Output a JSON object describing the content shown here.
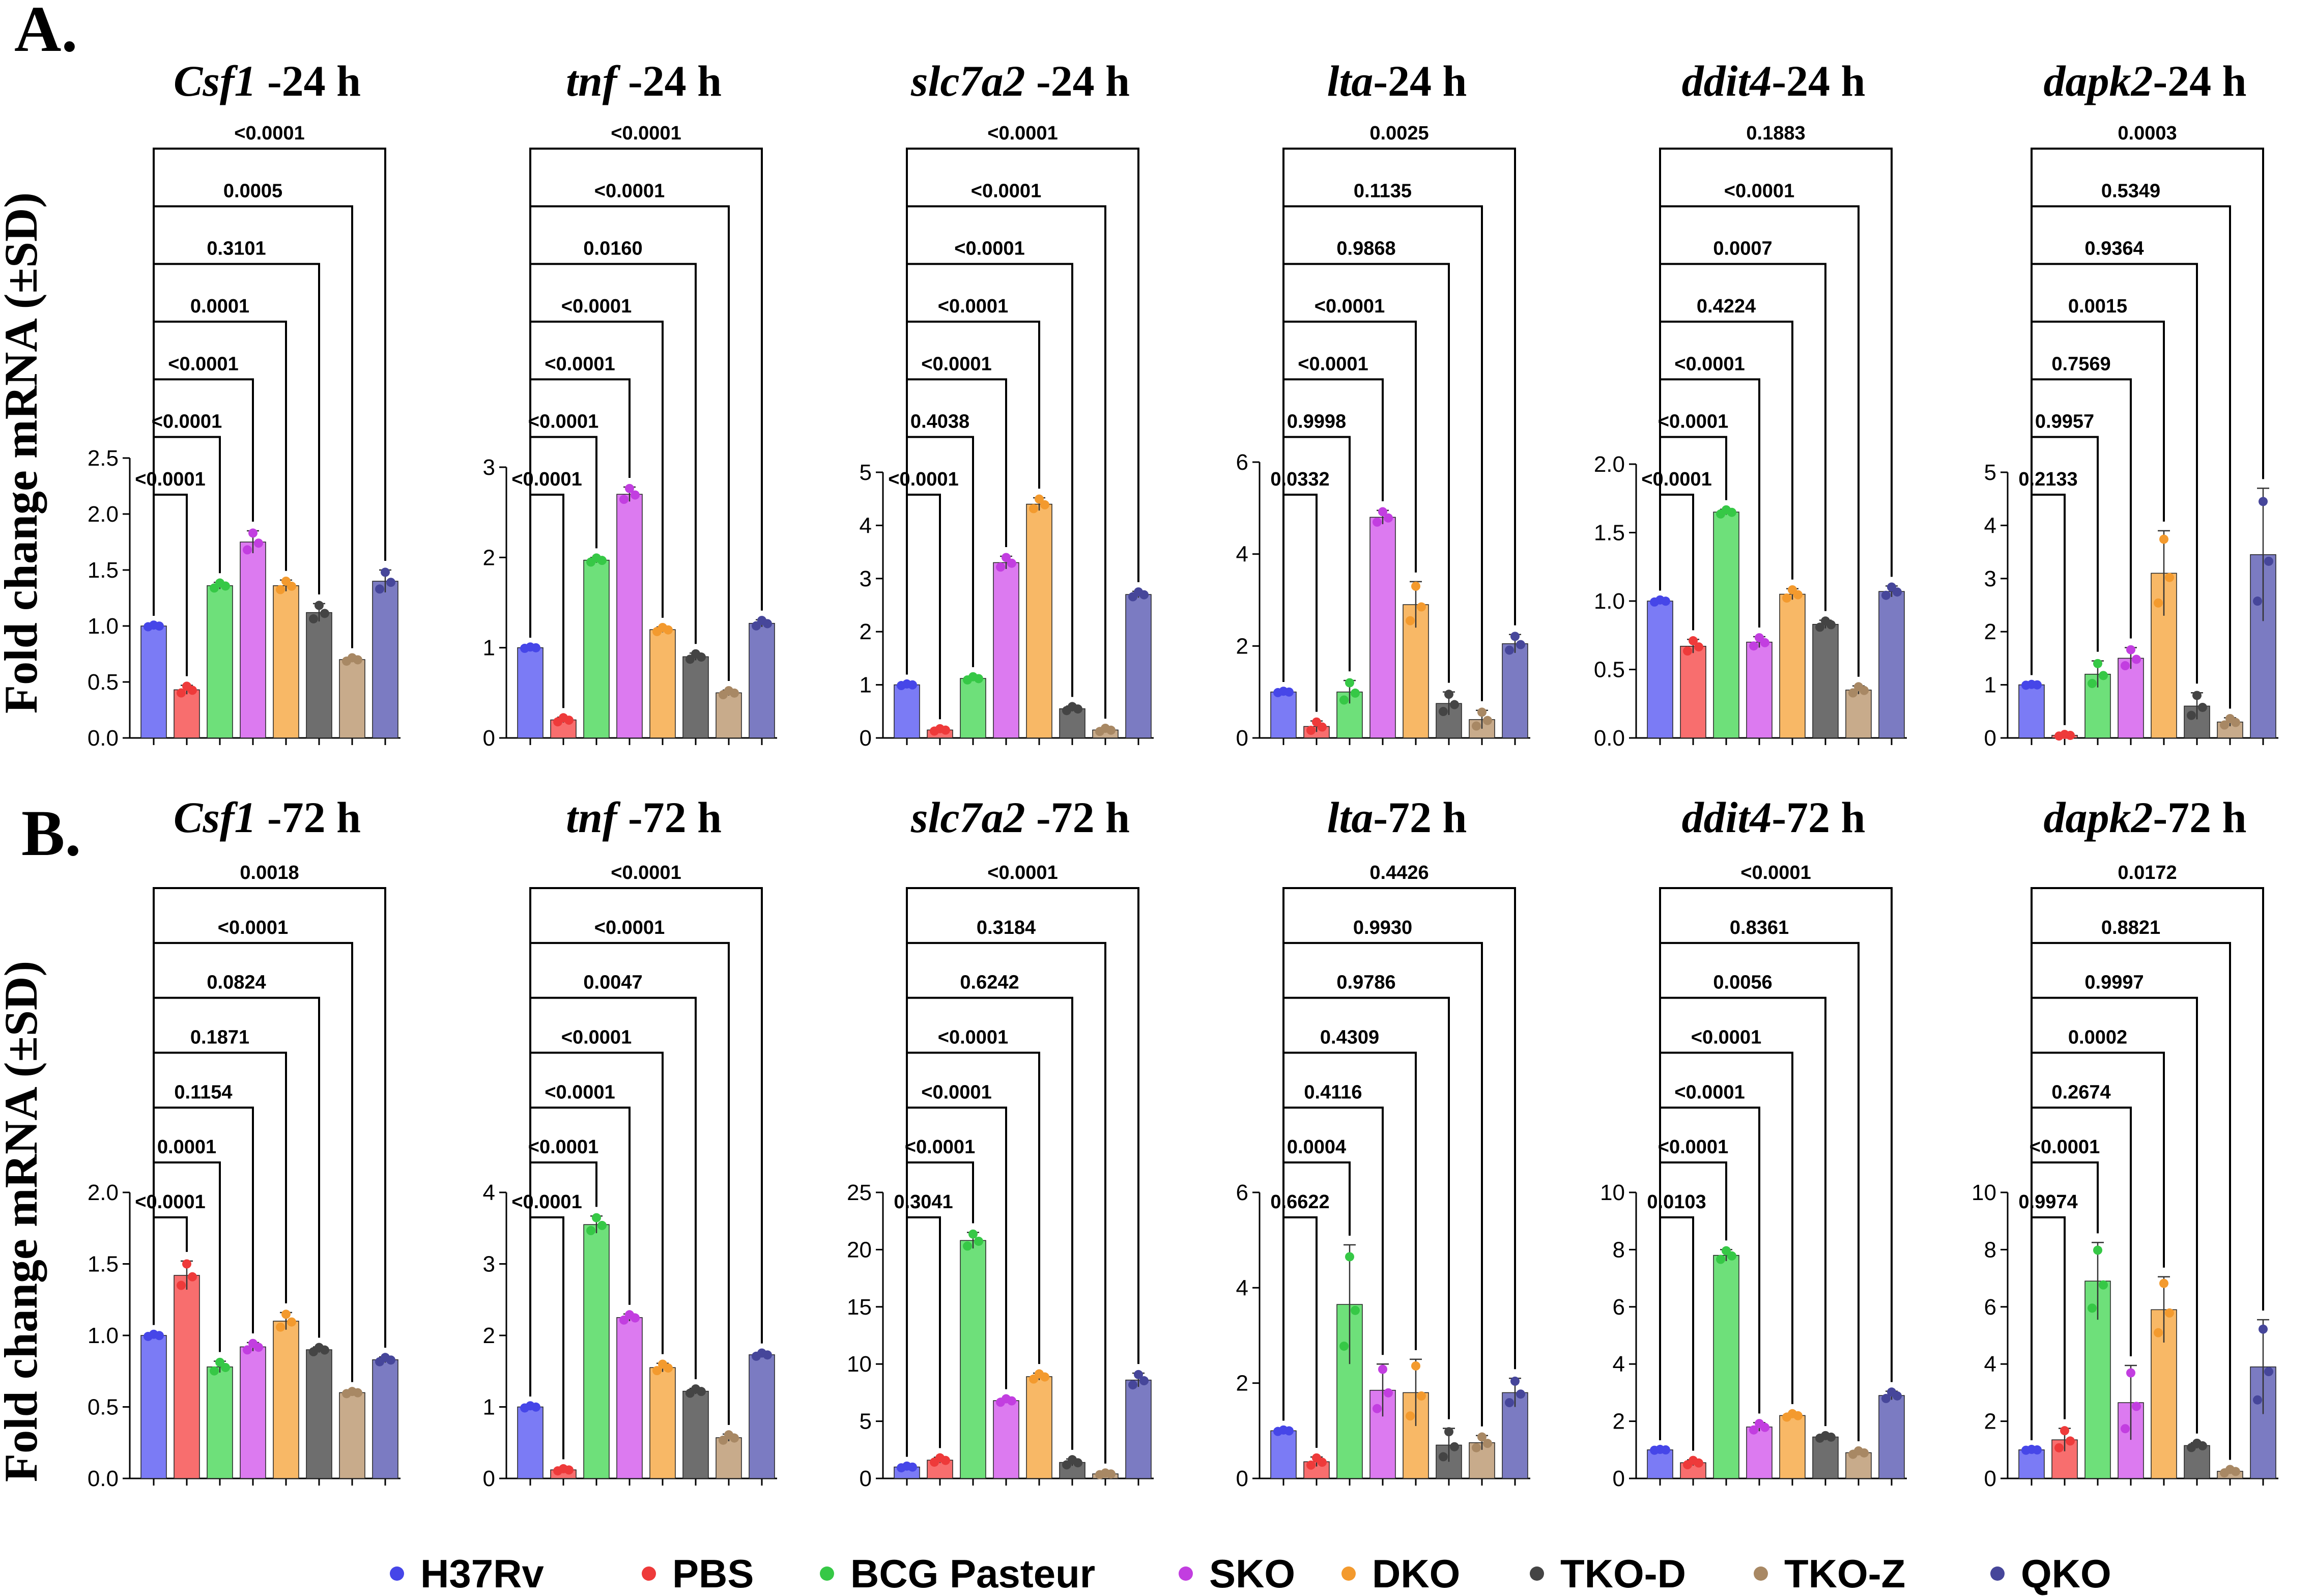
{
  "figure": {
    "panel_a_label": "A.",
    "panel_b_label": "B.",
    "ylabel": "Fold change mRNA (±SD)"
  },
  "groups": [
    "H37Rv",
    "PBS",
    "BCG Pasteur",
    "SKO",
    "DKO",
    "TKO-D",
    "TKO-Z",
    "QKO"
  ],
  "colors": {
    "fill": [
      "#7b7bf5",
      "#f86e6e",
      "#6ee07a",
      "#dc7af0",
      "#f8b866",
      "#6e6e6e",
      "#c8ab8b",
      "#7b7bc2"
    ],
    "dot": [
      "#4646e8",
      "#ee3a3a",
      "#36c846",
      "#c23ee0",
      "#f39a2e",
      "#444444",
      "#a88864",
      "#46469a"
    ]
  },
  "chart_data": [
    {
      "type": "bar",
      "row": "A",
      "gene": "Csf1",
      "time": " -24 h",
      "ylim": [
        0,
        2.5
      ],
      "yticks": [
        "0.0",
        "0.5",
        "1.0",
        "1.5",
        "2.0",
        "2.5"
      ],
      "ytick_values": [
        0,
        0.5,
        1.0,
        1.5,
        2.0,
        2.5
      ],
      "categories": [
        "H37Rv",
        "PBS",
        "BCG Pasteur",
        "SKO",
        "DKO",
        "TKO-D",
        "TKO-Z",
        "QKO"
      ],
      "values": [
        1.0,
        0.43,
        1.36,
        1.75,
        1.36,
        1.12,
        0.7,
        1.4
      ],
      "sd": [
        0.01,
        0.04,
        0.03,
        0.1,
        0.05,
        0.08,
        0.02,
        0.1
      ],
      "pvalues": [
        "<0.0001",
        "<0.0001",
        "<0.0001",
        "0.0001",
        "0.3101",
        "0.0005",
        "<0.0001"
      ]
    },
    {
      "type": "bar",
      "row": "A",
      "gene": "tnf",
      "time": " -24 h",
      "ylim": [
        0,
        3
      ],
      "yticks": [
        "0",
        "1",
        "2",
        "3"
      ],
      "ytick_values": [
        0,
        1,
        2,
        3
      ],
      "categories": [
        "H37Rv",
        "PBS",
        "BCG Pasteur",
        "SKO",
        "DKO",
        "TKO-D",
        "TKO-Z",
        "QKO"
      ],
      "values": [
        1.0,
        0.2,
        1.97,
        2.7,
        1.2,
        0.9,
        0.5,
        1.27
      ],
      "sd": [
        0.01,
        0.03,
        0.03,
        0.08,
        0.03,
        0.04,
        0.03,
        0.04
      ],
      "pvalues": [
        "<0.0001",
        "<0.0001",
        "<0.0001",
        "<0.0001",
        "0.0160",
        "<0.0001",
        "<0.0001"
      ]
    },
    {
      "type": "bar",
      "row": "A",
      "gene": "slc7a2",
      "time": " -24 h",
      "ylim": [
        0,
        5
      ],
      "yticks": [
        "0",
        "1",
        "2",
        "3",
        "4",
        "5"
      ],
      "ytick_values": [
        0,
        1,
        2,
        3,
        4,
        5
      ],
      "categories": [
        "H37Rv",
        "PBS",
        "BCG Pasteur",
        "SKO",
        "DKO",
        "TKO-D",
        "TKO-Z",
        "QKO"
      ],
      "values": [
        1.0,
        0.15,
        1.12,
        3.3,
        4.4,
        0.55,
        0.15,
        2.7
      ],
      "sd": [
        0.02,
        0.03,
        0.04,
        0.12,
        0.12,
        0.05,
        0.04,
        0.06
      ],
      "pvalues": [
        "<0.0001",
        "0.4038",
        "<0.0001",
        "<0.0001",
        "<0.0001",
        "<0.0001",
        "<0.0001"
      ]
    },
    {
      "type": "bar",
      "row": "A",
      "gene": "lta",
      "time": "-24 h",
      "ylim": [
        0,
        6
      ],
      "yticks": [
        "0",
        "2",
        "4",
        "6"
      ],
      "ytick_values": [
        0,
        2,
        4,
        6
      ],
      "categories": [
        "H37Rv",
        "PBS",
        "BCG Pasteur",
        "SKO",
        "DKO",
        "TKO-D",
        "TKO-Z",
        "QKO"
      ],
      "values": [
        1.0,
        0.25,
        1.0,
        4.8,
        2.9,
        0.75,
        0.4,
        2.05
      ],
      "sd": [
        0.02,
        0.12,
        0.25,
        0.15,
        0.5,
        0.25,
        0.2,
        0.2
      ],
      "pvalues": [
        "0.0332",
        "0.9998",
        "<0.0001",
        "<0.0001",
        "0.9868",
        "0.1135",
        "0.0025"
      ]
    },
    {
      "type": "bar",
      "row": "A",
      "gene": "ddit4",
      "time": "-24 h",
      "ylim": [
        0,
        2.0
      ],
      "yticks": [
        "0.0",
        "0.5",
        "1.0",
        "1.5",
        "2.0"
      ],
      "ytick_values": [
        0,
        0.5,
        1.0,
        1.5,
        2.0
      ],
      "categories": [
        "H37Rv",
        "PBS",
        "BCG Pasteur",
        "SKO",
        "DKO",
        "TKO-D",
        "TKO-Z",
        "QKO"
      ],
      "values": [
        1.0,
        0.67,
        1.65,
        0.7,
        1.05,
        0.83,
        0.35,
        1.07
      ],
      "sd": [
        0.01,
        0.05,
        0.02,
        0.04,
        0.04,
        0.03,
        0.03,
        0.04
      ],
      "pvalues": [
        "<0.0001",
        "<0.0001",
        "<0.0001",
        "0.4224",
        "0.0007",
        "<0.0001",
        "0.1883"
      ]
    },
    {
      "type": "bar",
      "row": "A",
      "gene": "dapk2",
      "time": "-24 h",
      "ylim": [
        0,
        5
      ],
      "yticks": [
        "0",
        "1",
        "2",
        "3",
        "4",
        "5"
      ],
      "ytick_values": [
        0,
        1,
        2,
        3,
        4,
        5
      ],
      "categories": [
        "H37Rv",
        "PBS",
        "BCG Pasteur",
        "SKO",
        "DKO",
        "TKO-D",
        "TKO-Z",
        "QKO"
      ],
      "values": [
        1.0,
        0.05,
        1.2,
        1.5,
        3.1,
        0.6,
        0.3,
        3.45
      ],
      "sd": [
        0.01,
        0.02,
        0.25,
        0.2,
        0.8,
        0.25,
        0.08,
        1.25
      ],
      "pvalues": [
        "0.2133",
        "0.9957",
        "0.7569",
        "0.0015",
        "0.9364",
        "0.5349",
        "0.0003"
      ]
    },
    {
      "type": "bar",
      "row": "B",
      "gene": "Csf1",
      "time": " -72 h",
      "ylim": [
        0,
        2.0
      ],
      "yticks": [
        "0.0",
        "0.5",
        "1.0",
        "1.5",
        "2.0"
      ],
      "ytick_values": [
        0,
        0.5,
        1.0,
        1.5,
        2.0
      ],
      "categories": [
        "H37Rv",
        "PBS",
        "BCG Pasteur",
        "SKO",
        "DKO",
        "TKO-D",
        "TKO-Z",
        "QKO"
      ],
      "values": [
        1.0,
        1.42,
        0.78,
        0.92,
        1.1,
        0.9,
        0.6,
        0.83
      ],
      "sd": [
        0.01,
        0.1,
        0.04,
        0.03,
        0.06,
        0.02,
        0.01,
        0.02
      ],
      "pvalues": [
        "<0.0001",
        "0.0001",
        "0.1154",
        "0.1871",
        "0.0824",
        "<0.0001",
        "0.0018"
      ]
    },
    {
      "type": "bar",
      "row": "B",
      "gene": "tnf",
      "time": " -72 h",
      "ylim": [
        0,
        4
      ],
      "yticks": [
        "0",
        "1",
        "2",
        "3",
        "4"
      ],
      "ytick_values": [
        0,
        1,
        2,
        3,
        4
      ],
      "categories": [
        "H37Rv",
        "PBS",
        "BCG Pasteur",
        "SKO",
        "DKO",
        "TKO-D",
        "TKO-Z",
        "QKO"
      ],
      "values": [
        1.0,
        0.12,
        3.55,
        2.25,
        1.55,
        1.22,
        0.57,
        1.73
      ],
      "sd": [
        0.02,
        0.02,
        0.12,
        0.05,
        0.06,
        0.04,
        0.05,
        0.03
      ],
      "pvalues": [
        "<0.0001",
        "<0.0001",
        "<0.0001",
        "<0.0001",
        "0.0047",
        "<0.0001",
        "<0.0001"
      ]
    },
    {
      "type": "bar",
      "row": "B",
      "gene": "slc7a2",
      "time": " -72 h",
      "ylim": [
        0,
        25
      ],
      "yticks": [
        "0",
        "5",
        "10",
        "15",
        "20",
        "25"
      ],
      "ytick_values": [
        0,
        5,
        10,
        15,
        20,
        25
      ],
      "categories": [
        "H37Rv",
        "PBS",
        "BCG Pasteur",
        "SKO",
        "DKO",
        "TKO-D",
        "TKO-Z",
        "QKO"
      ],
      "values": [
        1.0,
        1.6,
        20.8,
        6.8,
        8.9,
        1.4,
        0.4,
        8.6
      ],
      "sd": [
        0.1,
        0.25,
        0.7,
        0.2,
        0.3,
        0.3,
        0.1,
        0.6
      ],
      "pvalues": [
        "0.3041",
        "<0.0001",
        "<0.0001",
        "<0.0001",
        "0.6242",
        "0.3184",
        "<0.0001"
      ]
    },
    {
      "type": "bar",
      "row": "B",
      "gene": "lta",
      "time": "-72 h",
      "ylim": [
        0,
        6
      ],
      "yticks": [
        "0",
        "2",
        "4",
        "6"
      ],
      "ytick_values": [
        0,
        2,
        4,
        6
      ],
      "categories": [
        "H37Rv",
        "PBS",
        "BCG Pasteur",
        "SKO",
        "DKO",
        "TKO-D",
        "TKO-Z",
        "QKO"
      ],
      "values": [
        1.0,
        0.35,
        3.65,
        1.85,
        1.8,
        0.7,
        0.75,
        1.8
      ],
      "sd": [
        0.02,
        0.1,
        1.25,
        0.55,
        0.7,
        0.35,
        0.15,
        0.3
      ],
      "pvalues": [
        "0.6622",
        "0.0004",
        "0.4116",
        "0.4309",
        "0.9786",
        "0.9930",
        "0.4426"
      ]
    },
    {
      "type": "bar",
      "row": "B",
      "gene": "ddit4",
      "time": "-72 h",
      "ylim": [
        0,
        10
      ],
      "yticks": [
        "0",
        "2",
        "4",
        "6",
        "8",
        "10"
      ],
      "ytick_values": [
        0,
        2,
        4,
        6,
        8,
        10
      ],
      "categories": [
        "H37Rv",
        "PBS",
        "BCG Pasteur",
        "SKO",
        "DKO",
        "TKO-D",
        "TKO-Z",
        "QKO"
      ],
      "values": [
        1.0,
        0.55,
        7.8,
        1.8,
        2.2,
        1.45,
        0.9,
        2.9
      ],
      "sd": [
        0.02,
        0.1,
        0.2,
        0.15,
        0.08,
        0.06,
        0.08,
        0.15
      ],
      "pvalues": [
        "0.0103",
        "<0.0001",
        "<0.0001",
        "<0.0001",
        "0.0056",
        "0.8361",
        "<0.0001"
      ]
    },
    {
      "type": "bar",
      "row": "B",
      "gene": "dapk2",
      "time": "-72 h",
      "ylim": [
        0,
        10
      ],
      "yticks": [
        "0",
        "2",
        "4",
        "6",
        "8",
        "10"
      ],
      "ytick_values": [
        0,
        2,
        4,
        6,
        8,
        10
      ],
      "categories": [
        "H37Rv",
        "PBS",
        "BCG Pasteur",
        "SKO",
        "DKO",
        "TKO-D",
        "TKO-Z",
        "QKO"
      ],
      "values": [
        1.0,
        1.35,
        6.9,
        2.65,
        5.9,
        1.15,
        0.25,
        3.9
      ],
      "sd": [
        0.02,
        0.4,
        1.35,
        1.3,
        1.15,
        0.1,
        0.08,
        1.65
      ],
      "pvalues": [
        "0.9974",
        "<0.0001",
        "0.2674",
        "0.0002",
        "0.9997",
        "0.8821",
        "0.0172"
      ]
    }
  ]
}
